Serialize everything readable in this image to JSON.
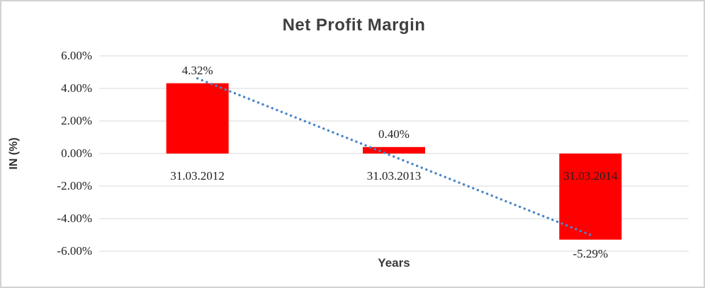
{
  "window": {
    "background_color": "#ffffff",
    "border_color": "#d2d2d2"
  },
  "chart_data": {
    "type": "bar",
    "title": "Net Profit Margin",
    "xlabel": "Years",
    "ylabel": "IN (%)",
    "categories": [
      "31.03.2012",
      "31.03.2013",
      "31.03.2014"
    ],
    "values": [
      4.32,
      0.4,
      -5.29
    ],
    "data_labels": [
      "4.32%",
      "0.40%",
      "-5.29%"
    ],
    "ylim": [
      -6,
      6
    ],
    "ytick_step": 2,
    "ytick_labels": [
      "6.00%",
      "4.00%",
      "2.00%",
      "0.00%",
      "-2.00%",
      "-4.00%",
      "-6.00%"
    ],
    "grid": true,
    "gridline_color": "#d9d9d9",
    "bar_color": "#ff0000",
    "label_color": "#1f1f1f",
    "title_color": "#3f3f3f",
    "legend": "none",
    "trendline": {
      "type": "linear",
      "style": "dotted",
      "color": "#4a86c8",
      "start_value": 4.62,
      "end_value": -5.0
    }
  }
}
